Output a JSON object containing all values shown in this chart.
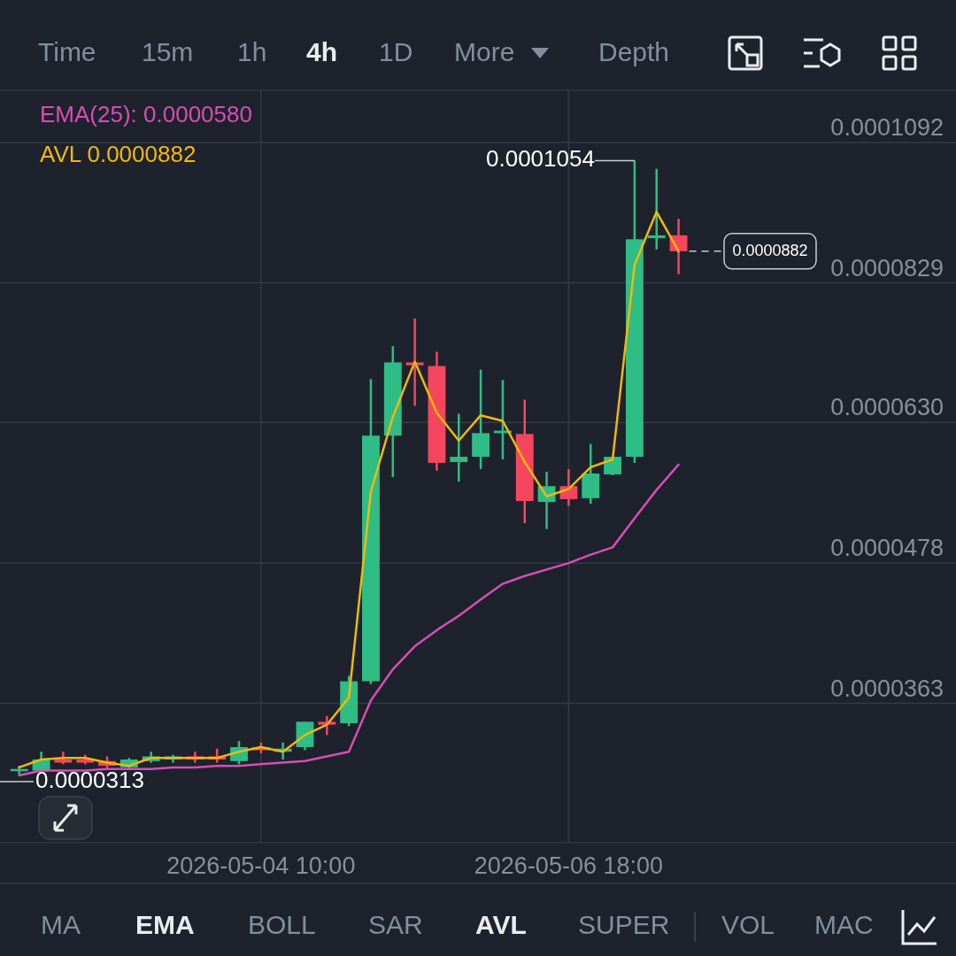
{
  "chart_data": {
    "type": "candlestick",
    "x": [
      "2026-05-02T14:00",
      "2026-05-02T18:00",
      "2026-05-02T22:00",
      "2026-05-03T02:00",
      "2026-05-03T06:00",
      "2026-05-03T10:00",
      "2026-05-03T14:00",
      "2026-05-03T18:00",
      "2026-05-03T22:00",
      "2026-05-04T02:00",
      "2026-05-04T06:00",
      "2026-05-04T10:00",
      "2026-05-04T14:00",
      "2026-05-04T18:00",
      "2026-05-04T22:00",
      "2026-05-05T02:00",
      "2026-05-05T06:00",
      "2026-05-05T10:00",
      "2026-05-05T14:00",
      "2026-05-05T18:00",
      "2026-05-05T22:00",
      "2026-05-06T02:00",
      "2026-05-06T06:00",
      "2026-05-06T10:00",
      "2026-05-06T14:00",
      "2026-05-06T18:00",
      "2026-05-06T22:00",
      "2026-05-07T02:00",
      "2026-05-07T06:00",
      "2026-05-07T10:00",
      "2026-05-07T14:00"
    ],
    "ohlc": [
      [
        3.18e-05,
        3.21e-05,
        3.15e-05,
        3.19e-05
      ],
      [
        3.18e-05,
        3.3e-05,
        3.18e-05,
        3.25e-05
      ],
      [
        3.25e-05,
        3.3e-05,
        3.22e-05,
        3.23e-05
      ],
      [
        3.25e-05,
        3.28e-05,
        3.22e-05,
        3.23e-05
      ],
      [
        3.24e-05,
        3.27e-05,
        3.19e-05,
        3.21e-05
      ],
      [
        3.2e-05,
        3.26e-05,
        3.19e-05,
        3.25e-05
      ],
      [
        3.24e-05,
        3.3e-05,
        3.23e-05,
        3.27e-05
      ],
      [
        3.25e-05,
        3.28e-05,
        3.23e-05,
        3.27e-05
      ],
      [
        3.27e-05,
        3.3e-05,
        3.23e-05,
        3.25e-05
      ],
      [
        3.27e-05,
        3.32e-05,
        3.23e-05,
        3.25e-05
      ],
      [
        3.24e-05,
        3.37e-05,
        3.22e-05,
        3.33e-05
      ],
      [
        3.33e-05,
        3.36e-05,
        3.29e-05,
        3.31e-05
      ],
      [
        3.3e-05,
        3.36e-05,
        3.25e-05,
        3.32e-05
      ],
      [
        3.33e-05,
        3.5e-05,
        3.31e-05,
        3.5e-05
      ],
      [
        3.5e-05,
        3.54e-05,
        3.41e-05,
        3.48e-05
      ],
      [
        3.49e-05,
        3.83e-05,
        3.47e-05,
        3.79e-05
      ],
      [
        3.79e-05,
        6.86e-05,
        3.77e-05,
        6.14e-05
      ],
      [
        6.14e-05,
        7.32e-05,
        5.66e-05,
        7.09e-05
      ],
      [
        7.09e-05,
        7.73e-05,
        6.51e-05,
        7.05e-05
      ],
      [
        7.04e-05,
        7.24e-05,
        5.73e-05,
        5.82e-05
      ],
      [
        5.83e-05,
        6.41e-05,
        5.61e-05,
        5.89e-05
      ],
      [
        5.89e-05,
        6.99e-05,
        5.75e-05,
        6.17e-05
      ],
      [
        6.17e-05,
        6.85e-05,
        5.86e-05,
        6.2e-05
      ],
      [
        6.16e-05,
        6.59e-05,
        5.17e-05,
        5.4e-05
      ],
      [
        5.39e-05,
        5.72e-05,
        5.11e-05,
        5.56e-05
      ],
      [
        5.56e-05,
        5.75e-05,
        5.35e-05,
        5.42e-05
      ],
      [
        5.43e-05,
        6.04e-05,
        5.37e-05,
        5.7e-05
      ],
      [
        5.69e-05,
        5.89e-05,
        5.68e-05,
        5.89e-05
      ],
      [
        5.89e-05,
        0.0001054,
        5.82e-05,
        9.03e-05
      ],
      [
        9.05e-05,
        0.0001037,
        8.85e-05,
        9.1e-05
      ],
      [
        9.1e-05,
        9.4e-05,
        8.43e-05,
        8.82e-05
      ]
    ],
    "colors": [
      "#2ebd85",
      "#2ebd85",
      "#f6465d",
      "#f6465d",
      "#f6465d",
      "#2ebd85",
      "#2ebd85",
      "#2ebd85",
      "#f6465d",
      "#f6465d",
      "#2ebd85",
      "#f6465d",
      "#2ebd85",
      "#2ebd85",
      "#f6465d",
      "#2ebd85",
      "#2ebd85",
      "#2ebd85",
      "#f6465d",
      "#f6465d",
      "#2ebd85",
      "#2ebd85",
      "#2ebd85",
      "#f6465d",
      "#2ebd85",
      "#f6465d",
      "#2ebd85",
      "#2ebd85",
      "#2ebd85",
      "#2ebd85",
      "#f6465d"
    ],
    "series": [
      {
        "name": "EMA(25): 0.0000580",
        "type": "line",
        "color": "#d64fb4",
        "values": [
          3.15e-05,
          3.18e-05,
          3.18e-05,
          3.18e-05,
          3.19e-05,
          3.19e-05,
          3.19e-05,
          3.2e-05,
          3.2e-05,
          3.21e-05,
          3.21e-05,
          3.22e-05,
          3.23e-05,
          3.24e-05,
          3.27e-05,
          3.3e-05,
          3.65e-05,
          3.88e-05,
          4.06e-05,
          4.19e-05,
          4.31e-05,
          4.45e-05,
          4.59e-05,
          4.66e-05,
          4.72e-05,
          4.78e-05,
          4.86e-05,
          4.93e-05,
          5.22e-05,
          5.52e-05,
          5.8e-05
        ]
      },
      {
        "name": "AVL 0.0000882",
        "type": "line",
        "color": "#f0b90b",
        "values": [
          3.2e-05,
          3.25e-05,
          3.26e-05,
          3.26e-05,
          3.23e-05,
          3.21e-05,
          3.26e-05,
          3.26e-05,
          3.26e-05,
          3.26e-05,
          3.3e-05,
          3.33e-05,
          3.3e-05,
          3.41e-05,
          3.48e-05,
          3.67e-05,
          5.5e-05,
          6.37e-05,
          7.1e-05,
          6.42e-05,
          6.08e-05,
          6.39e-05,
          6.32e-05,
          5.83e-05,
          5.45e-05,
          5.53e-05,
          5.77e-05,
          5.86e-05,
          8.59e-05,
          9.53e-05,
          8.82e-05
        ]
      }
    ],
    "xlim": [
      "2026-05-02T10:30",
      "2026-05-09T16:30"
    ],
    "xticks": [
      {
        "value": "2026-05-04T10:00",
        "label": "2026-05-04 10:00"
      },
      {
        "value": "2026-05-06T18:00",
        "label": "2026-05-06 18:00"
      }
    ],
    "ylim": [
      2.76e-05,
      0.000121
    ],
    "yticks": [
      {
        "value": 3.63e-05,
        "label": "0.0000363"
      },
      {
        "value": 4.78e-05,
        "label": "0.0000478"
      },
      {
        "value": 6.3e-05,
        "label": "0.0000630"
      },
      {
        "value": 8.29e-05,
        "label": "0.0000829"
      },
      {
        "value": 0.0001092,
        "label": "0.0001092"
      }
    ],
    "log": true,
    "grid": true,
    "legend": "top left",
    "line_style": "solid",
    "marker": "none",
    "ref_lines": [
      {
        "axis": "y",
        "value": 8.82e-05,
        "label": "0.0000882",
        "line_style": "dashed",
        "color": "#c8ccd2"
      }
    ],
    "annotations": [
      "Time",
      "15m",
      "1h",
      "4h",
      "1D",
      "More",
      "Depth",
      "MA",
      "EMA",
      "BOLL",
      "SAR",
      "AVL",
      "SUPER",
      "VOL",
      "MAC",
      {
        "text": "0.0001054",
        "x": "2026-05-07T06:00",
        "y": 0.0001054
      },
      "0.0000313"
    ]
  }
}
